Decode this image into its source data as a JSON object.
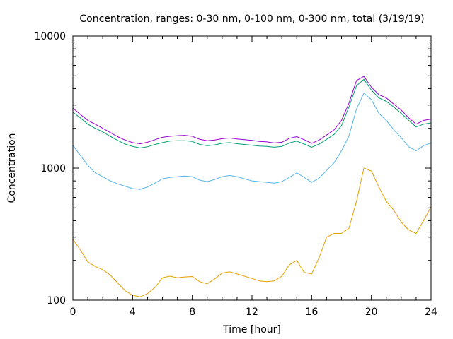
{
  "chart_data": {
    "type": "line",
    "title": "Concentration, ranges: 0-30 nm, 0-100 nm, 0-300 nm, total (3/19/19)",
    "xlabel": "Time [hour]",
    "ylabel": "Concentration",
    "xlim": [
      0,
      24
    ],
    "ylim": [
      100,
      10000
    ],
    "yscale": "log",
    "grid": false,
    "x_ticks": [
      0,
      4,
      8,
      12,
      16,
      20,
      24
    ],
    "y_ticks": [
      100,
      1000,
      10000
    ],
    "colors": [
      "#e69f00",
      "#56b4e9",
      "#009e73",
      "#9400d3"
    ],
    "x": [
      0,
      0.5,
      1,
      1.5,
      2,
      2.5,
      3,
      3.5,
      4,
      4.5,
      5,
      5.5,
      6,
      6.5,
      7,
      7.5,
      8,
      8.5,
      9,
      9.5,
      10,
      10.5,
      11,
      11.5,
      12,
      12.5,
      13,
      13.5,
      14,
      14.5,
      15,
      15.5,
      16,
      16.5,
      17,
      17.5,
      18,
      18.5,
      19,
      19.5,
      20,
      20.5,
      21,
      21.5,
      22,
      22.5,
      23,
      23.5,
      24
    ],
    "series": [
      {
        "values": [
          290,
          240,
          195,
          180,
          170,
          155,
          135,
          118,
          109,
          106,
          112,
          125,
          148,
          152,
          148,
          150,
          151,
          138,
          133,
          145,
          160,
          164,
          158,
          152,
          146,
          140,
          138,
          140,
          152,
          185,
          200,
          162,
          158,
          210,
          300,
          320,
          320,
          350,
          560,
          1000,
          950,
          720,
          560,
          480,
          390,
          340,
          320,
          400,
          510
        ]
      },
      {
        "values": [
          1490,
          1250,
          1050,
          920,
          860,
          800,
          760,
          730,
          700,
          690,
          720,
          770,
          830,
          850,
          860,
          870,
          860,
          810,
          790,
          820,
          860,
          880,
          860,
          830,
          800,
          790,
          780,
          770,
          790,
          850,
          920,
          850,
          780,
          840,
          960,
          1100,
          1350,
          1750,
          2800,
          3700,
          3300,
          2600,
          2300,
          1950,
          1700,
          1450,
          1350,
          1480,
          1550
        ]
      },
      {
        "values": [
          2650,
          2400,
          2150,
          2000,
          1880,
          1740,
          1620,
          1520,
          1460,
          1420,
          1450,
          1510,
          1560,
          1600,
          1610,
          1610,
          1590,
          1510,
          1480,
          1500,
          1540,
          1560,
          1530,
          1510,
          1490,
          1470,
          1460,
          1440,
          1460,
          1550,
          1600,
          1520,
          1440,
          1520,
          1650,
          1800,
          2100,
          2900,
          4200,
          4700,
          3900,
          3400,
          3200,
          2900,
          2600,
          2300,
          2050,
          2150,
          2200
        ]
      },
      {
        "values": [
          2850,
          2550,
          2300,
          2150,
          2000,
          1860,
          1730,
          1630,
          1560,
          1530,
          1570,
          1640,
          1710,
          1740,
          1760,
          1770,
          1740,
          1650,
          1610,
          1630,
          1670,
          1690,
          1660,
          1640,
          1620,
          1590,
          1580,
          1550,
          1570,
          1680,
          1730,
          1640,
          1540,
          1630,
          1780,
          1950,
          2300,
          3100,
          4600,
          4950,
          4100,
          3600,
          3400,
          3050,
          2750,
          2400,
          2150,
          2300,
          2350
        ]
      }
    ]
  }
}
